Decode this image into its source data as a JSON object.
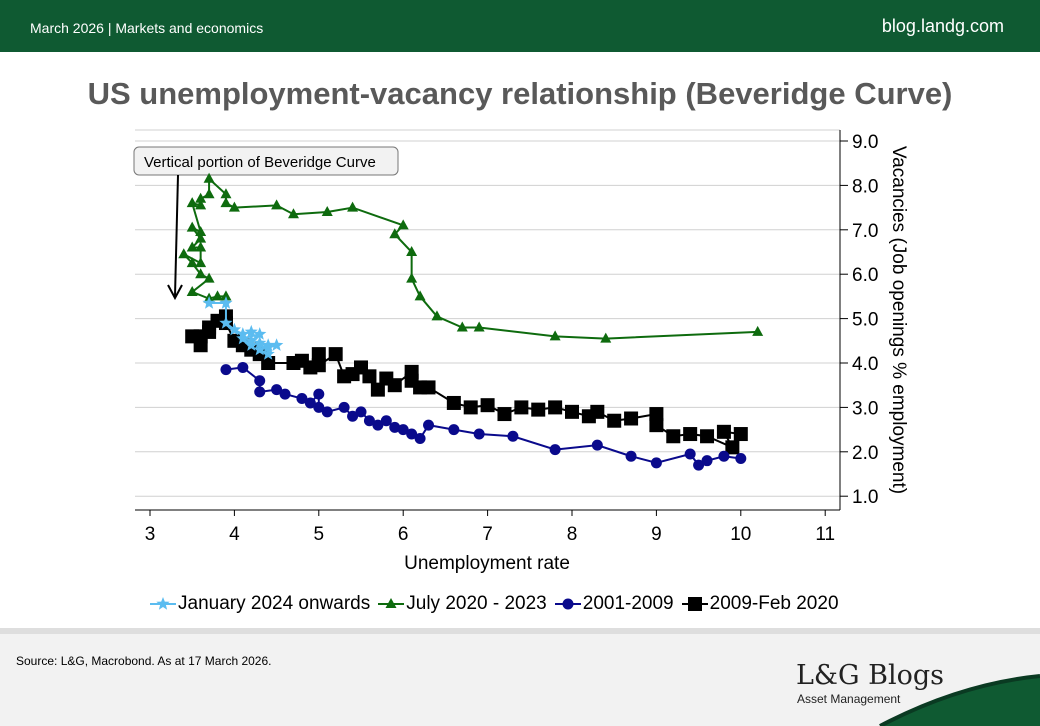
{
  "header": {
    "date_section": "March 2026 |  Markets and economics",
    "site": "blog.landg.com"
  },
  "title": "US unemployment-vacancy relationship (Beveridge Curve)",
  "footer": {
    "source": "Source: L&G, Macrobond. As at 17 March 2026.",
    "logo": "L&G Blogs",
    "logo_sub": "Asset Management"
  },
  "chart_data": {
    "type": "scatter",
    "title": "US unemployment-vacancy relationship (Beveridge Curve)",
    "xlabel": "Unemployment rate",
    "ylabel": "Vacancies (Job openings % employment)",
    "xlim": [
      2.8,
      11.2
    ],
    "ylim": [
      0.8,
      9.2
    ],
    "xticks": [
      "3",
      "4",
      "5",
      "6",
      "7",
      "8",
      "9",
      "10",
      "11"
    ],
    "yticks": [
      "1.0",
      "2.0",
      "3.0",
      "4.0",
      "5.0",
      "6.0",
      "7.0",
      "8.0",
      "9.0"
    ],
    "grid": "horizontal",
    "y_axis_side": "right",
    "legend_position": "bottom",
    "annotation": "Vertical portion of Beveridge Curve",
    "series": [
      {
        "name": "2009-Feb 2020",
        "color": "#000000",
        "marker": "square",
        "points": [
          [
            10.0,
            2.4
          ],
          [
            9.8,
            2.45
          ],
          [
            9.9,
            2.1
          ],
          [
            9.6,
            2.35
          ],
          [
            9.4,
            2.4
          ],
          [
            9.2,
            2.35
          ],
          [
            9.0,
            2.6
          ],
          [
            9.0,
            2.85
          ],
          [
            8.7,
            2.75
          ],
          [
            8.5,
            2.7
          ],
          [
            8.3,
            2.9
          ],
          [
            8.2,
            2.8
          ],
          [
            8.0,
            2.9
          ],
          [
            7.8,
            3.0
          ],
          [
            7.6,
            2.95
          ],
          [
            7.4,
            3.0
          ],
          [
            7.2,
            2.85
          ],
          [
            7.0,
            3.05
          ],
          [
            6.8,
            3.0
          ],
          [
            6.6,
            3.1
          ],
          [
            6.3,
            3.45
          ],
          [
            6.2,
            3.45
          ],
          [
            6.1,
            3.6
          ],
          [
            6.1,
            3.8
          ],
          [
            5.9,
            3.5
          ],
          [
            5.8,
            3.65
          ],
          [
            5.7,
            3.4
          ],
          [
            5.6,
            3.7
          ],
          [
            5.5,
            3.9
          ],
          [
            5.4,
            3.75
          ],
          [
            5.3,
            3.7
          ],
          [
            5.2,
            4.2
          ],
          [
            5.0,
            3.95
          ],
          [
            5.0,
            4.2
          ],
          [
            4.9,
            3.9
          ],
          [
            4.8,
            4.05
          ],
          [
            4.7,
            4.0
          ],
          [
            4.4,
            4.0
          ],
          [
            4.3,
            4.2
          ],
          [
            4.2,
            4.3
          ],
          [
            4.1,
            4.4
          ],
          [
            4.0,
            4.5
          ],
          [
            3.9,
            4.9
          ],
          [
            3.8,
            4.95
          ],
          [
            3.9,
            5.05
          ],
          [
            3.7,
            4.8
          ],
          [
            3.6,
            4.6
          ],
          [
            3.5,
            4.6
          ],
          [
            3.6,
            4.4
          ],
          [
            3.7,
            4.7
          ]
        ]
      },
      {
        "name": "2001-2009",
        "color": "#0a0a8c",
        "marker": "circle",
        "points": [
          [
            3.9,
            3.85
          ],
          [
            4.1,
            3.9
          ],
          [
            4.3,
            3.6
          ],
          [
            4.3,
            3.35
          ],
          [
            4.5,
            3.4
          ],
          [
            4.6,
            3.3
          ],
          [
            4.8,
            3.2
          ],
          [
            4.9,
            3.1
          ],
          [
            5.0,
            3.3
          ],
          [
            5.0,
            3.0
          ],
          [
            5.1,
            2.9
          ],
          [
            5.3,
            3.0
          ],
          [
            5.4,
            2.8
          ],
          [
            5.5,
            2.9
          ],
          [
            5.6,
            2.7
          ],
          [
            5.7,
            2.6
          ],
          [
            5.8,
            2.7
          ],
          [
            5.9,
            2.55
          ],
          [
            6.0,
            2.5
          ],
          [
            6.1,
            2.4
          ],
          [
            6.2,
            2.3
          ],
          [
            6.3,
            2.6
          ],
          [
            6.6,
            2.5
          ],
          [
            6.9,
            2.4
          ],
          [
            7.3,
            2.35
          ],
          [
            7.8,
            2.05
          ],
          [
            8.3,
            2.15
          ],
          [
            8.7,
            1.9
          ],
          [
            9.0,
            1.75
          ],
          [
            9.4,
            1.95
          ],
          [
            9.5,
            1.7
          ],
          [
            9.6,
            1.8
          ],
          [
            9.8,
            1.9
          ],
          [
            10.0,
            1.85
          ]
        ]
      },
      {
        "name": "July 2020 - 2023",
        "color": "#0e6b0e",
        "marker": "triangle",
        "points": [
          [
            10.2,
            4.7
          ],
          [
            8.4,
            4.55
          ],
          [
            7.8,
            4.6
          ],
          [
            6.9,
            4.8
          ],
          [
            6.7,
            4.8
          ],
          [
            6.4,
            5.05
          ],
          [
            6.2,
            5.5
          ],
          [
            6.1,
            5.9
          ],
          [
            6.1,
            6.5
          ],
          [
            5.9,
            6.9
          ],
          [
            6.0,
            7.1
          ],
          [
            5.4,
            7.5
          ],
          [
            5.1,
            7.4
          ],
          [
            4.7,
            7.35
          ],
          [
            4.5,
            7.55
          ],
          [
            4.0,
            7.5
          ],
          [
            3.9,
            7.6
          ],
          [
            3.9,
            7.8
          ],
          [
            3.7,
            8.15
          ],
          [
            3.7,
            7.8
          ],
          [
            3.6,
            7.7
          ],
          [
            3.6,
            7.55
          ],
          [
            3.5,
            7.6
          ],
          [
            3.6,
            6.95
          ],
          [
            3.5,
            7.05
          ],
          [
            3.6,
            6.8
          ],
          [
            3.5,
            6.6
          ],
          [
            3.6,
            6.6
          ],
          [
            3.6,
            6.25
          ],
          [
            3.4,
            6.45
          ],
          [
            3.5,
            6.25
          ],
          [
            3.6,
            6.0
          ],
          [
            3.7,
            5.9
          ],
          [
            3.5,
            5.6
          ],
          [
            3.7,
            5.45
          ],
          [
            3.8,
            5.5
          ],
          [
            3.9,
            5.5
          ]
        ]
      },
      {
        "name": "January 2024 onwards",
        "color": "#5bbcf0",
        "marker": "star",
        "points": [
          [
            3.7,
            5.35
          ],
          [
            3.9,
            5.35
          ],
          [
            3.9,
            4.9
          ],
          [
            4.0,
            4.75
          ],
          [
            4.1,
            4.65
          ],
          [
            4.2,
            4.7
          ],
          [
            4.2,
            4.5
          ],
          [
            4.3,
            4.65
          ],
          [
            4.1,
            4.55
          ],
          [
            4.2,
            4.4
          ],
          [
            4.3,
            4.45
          ],
          [
            4.4,
            4.4
          ],
          [
            4.3,
            4.3
          ],
          [
            4.4,
            4.2
          ],
          [
            4.4,
            4.35
          ],
          [
            4.5,
            4.4
          ]
        ]
      }
    ],
    "legend_order": [
      "January 2024 onwards",
      "July 2020 - 2023",
      "2001-2009",
      "2009-Feb 2020"
    ]
  }
}
